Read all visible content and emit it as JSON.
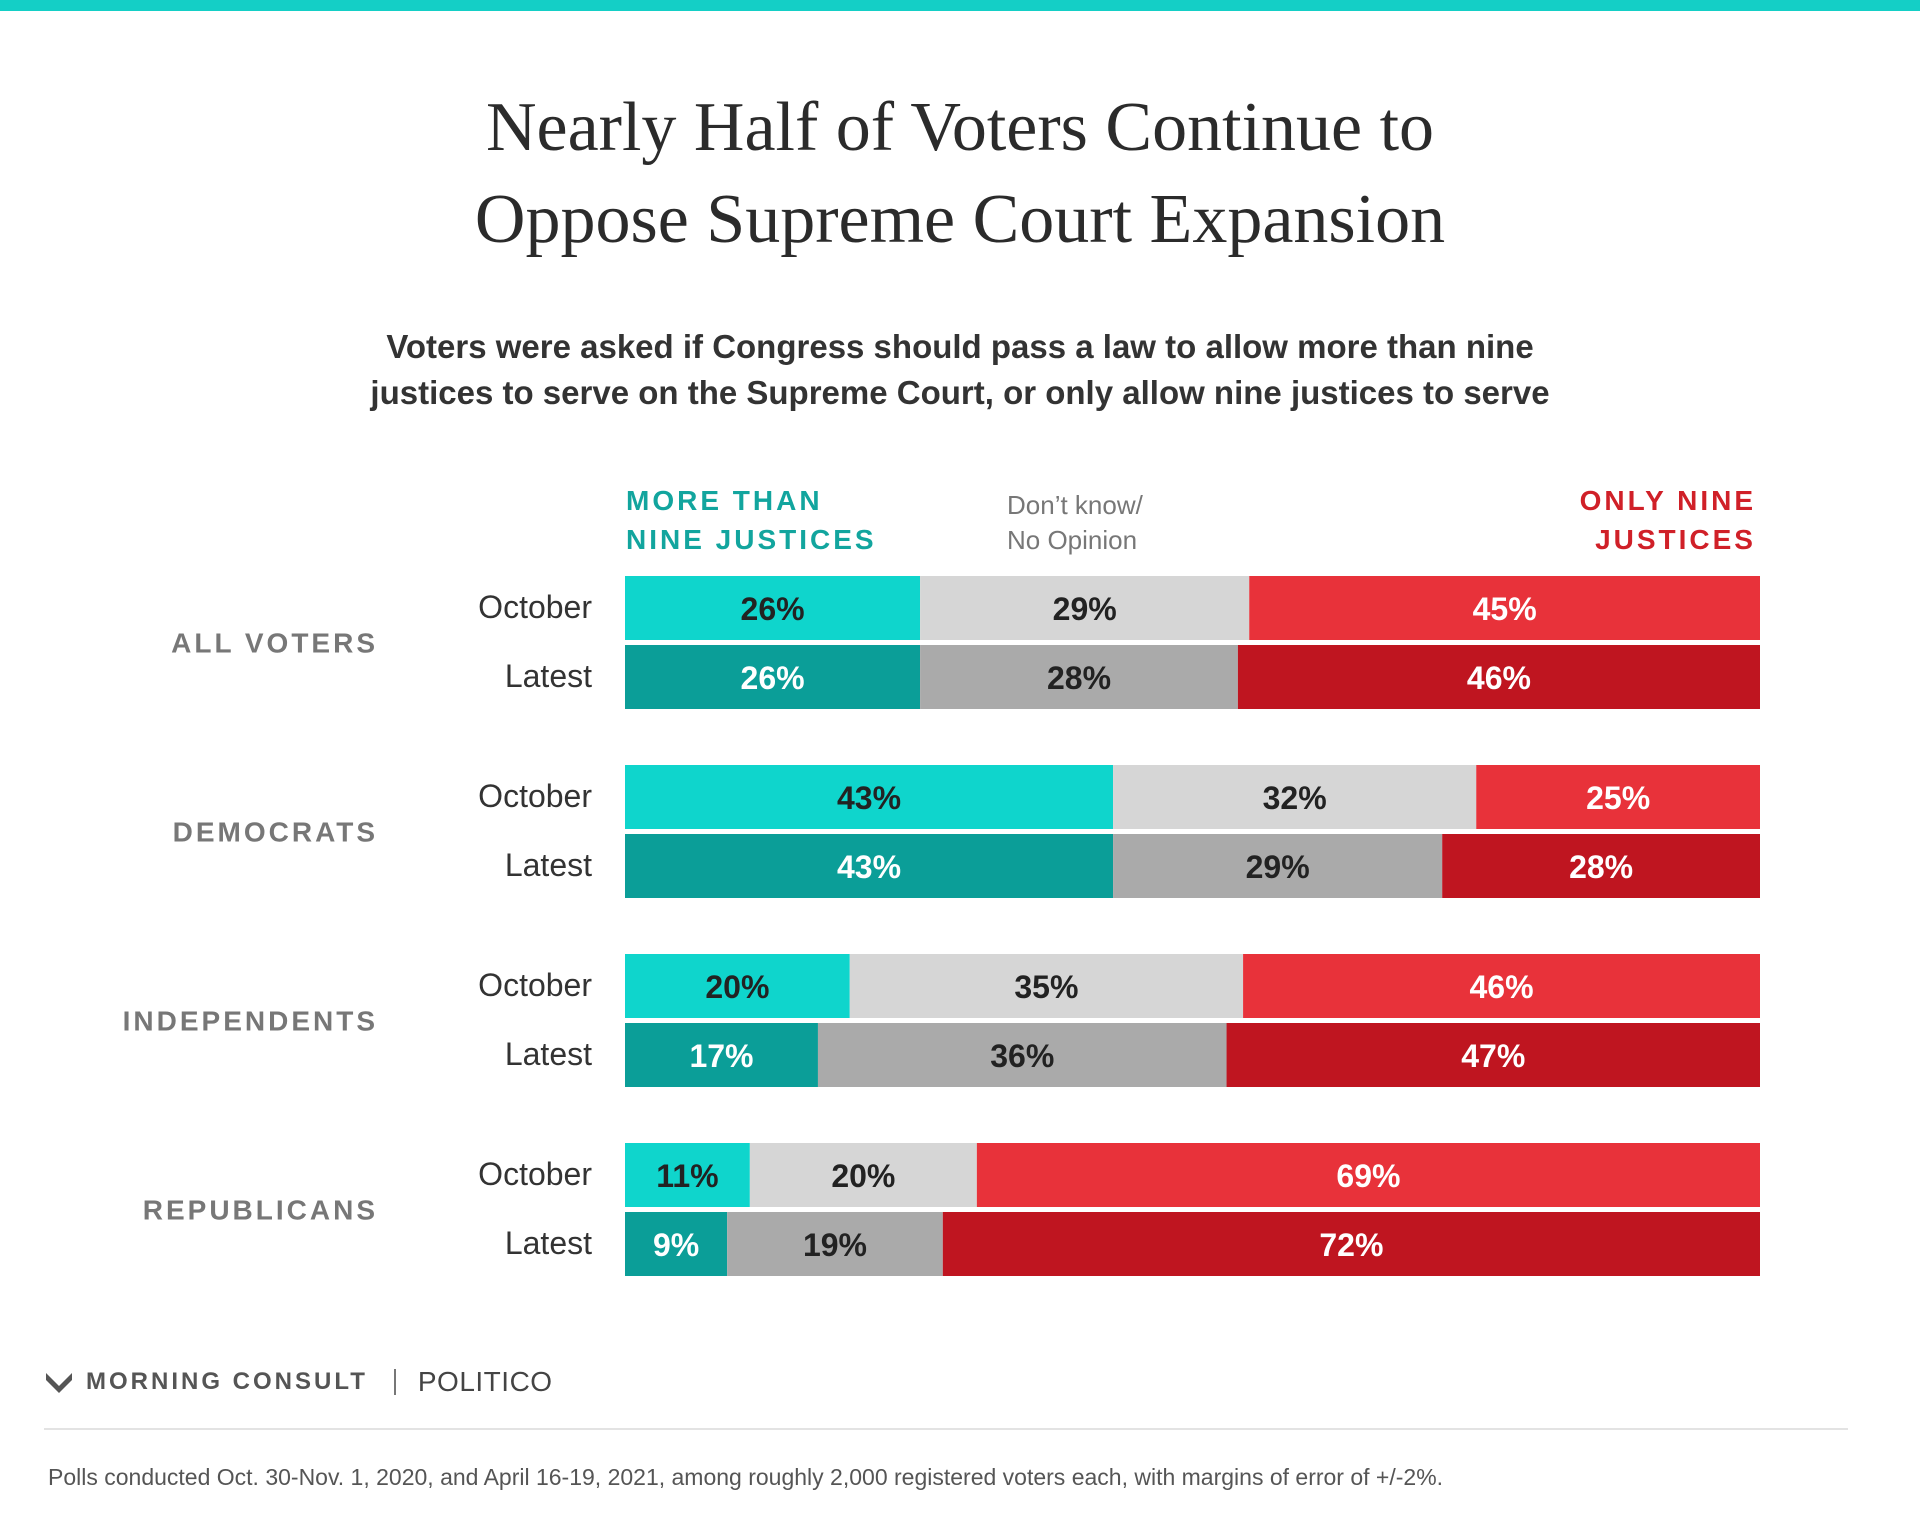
{
  "title_lines": [
    "Nearly Half of Voters Continue to",
    "Oppose Supreme Court Expansion"
  ],
  "subtitle_lines": [
    "Voters were asked if Congress should pass a law to allow more than nine",
    "justices to serve on the Supreme Court, or only allow nine justices to serve"
  ],
  "legend": {
    "more": [
      "MORE THAN",
      "NINE JUSTICES"
    ],
    "dontknow": [
      "Don’t know/",
      "No Opinion"
    ],
    "only": [
      "ONLY NINE",
      "JUSTICES"
    ]
  },
  "colors": {
    "accent": "#14cfc6",
    "more_october": "#0fd5cc",
    "more_latest": "#0b9e98",
    "dk_october": "#d6d6d6",
    "dk_latest": "#aaaaaa",
    "only_october": "#e8323a",
    "only_latest": "#bf1520",
    "more_label": "#12a59e",
    "dk_label": "#777777",
    "only_label": "#d02028",
    "group_label": "#777777"
  },
  "footer": {
    "brand": "MORNING CONSULT",
    "partner": "POLITICO",
    "note": "Polls conducted Oct. 30-Nov. 1, 2020, and April 16-19, 2021, among roughly 2,000 registered voters each, with margins of error of +/-2%."
  },
  "chart_data": {
    "type": "bar",
    "orientation": "horizontal",
    "stacked": true,
    "unit": "%",
    "series_names": [
      "MORE THAN NINE JUSTICES",
      "Don’t know/ No Opinion",
      "ONLY NINE JUSTICES"
    ],
    "groups": [
      {
        "name": "ALL VOTERS",
        "rows": [
          {
            "label": "October",
            "values": [
              26,
              29,
              45
            ]
          },
          {
            "label": "Latest",
            "values": [
              26,
              28,
              46
            ]
          }
        ]
      },
      {
        "name": "DEMOCRATS",
        "rows": [
          {
            "label": "October",
            "values": [
              43,
              32,
              25
            ]
          },
          {
            "label": "Latest",
            "values": [
              43,
              29,
              28
            ]
          }
        ]
      },
      {
        "name": "INDEPENDENTS",
        "rows": [
          {
            "label": "October",
            "values": [
              20,
              35,
              46
            ]
          },
          {
            "label": "Latest",
            "values": [
              17,
              36,
              47
            ]
          }
        ]
      },
      {
        "name": "REPUBLICANS",
        "rows": [
          {
            "label": "October",
            "values": [
              11,
              20,
              69
            ]
          },
          {
            "label": "Latest",
            "values": [
              9,
              19,
              72
            ]
          }
        ]
      }
    ]
  }
}
